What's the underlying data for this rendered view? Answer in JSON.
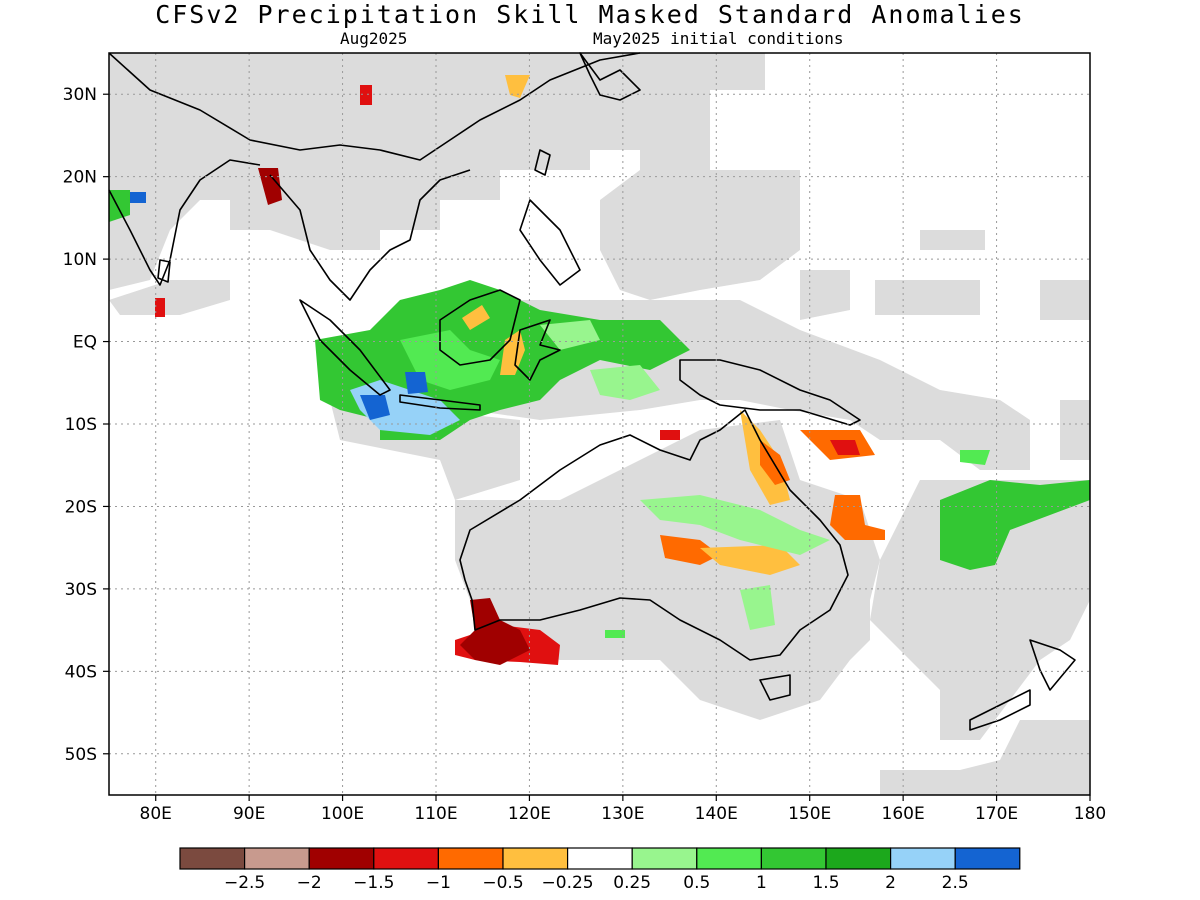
{
  "title": "CFSv2 Precipitation Skill Masked Standard Anomalies",
  "valid_label": "Aug2025",
  "init_label": "May2025 initial conditions",
  "map": {
    "lon_range": [
      75,
      180
    ],
    "lat_range": [
      -55,
      35
    ],
    "x_ticks": [
      "80E",
      "90E",
      "100E",
      "110E",
      "120E",
      "130E",
      "140E",
      "150E",
      "160E",
      "170E",
      "180"
    ],
    "x_tick_values": [
      80,
      90,
      100,
      110,
      120,
      130,
      140,
      150,
      160,
      170,
      180
    ],
    "y_ticks": [
      "30N",
      "20N",
      "10N",
      "EQ",
      "10S",
      "20S",
      "30S",
      "40S",
      "50S"
    ],
    "y_tick_values": [
      30,
      20,
      10,
      0,
      -10,
      -20,
      -30,
      -40,
      -50
    ],
    "grid": "dotted",
    "mask_color": "#dcdcdc"
  },
  "legend": {
    "colors": [
      "#7b4a3f",
      "#c89a8e",
      "#a00000",
      "#e01010",
      "#ff6a00",
      "#ffbf3f",
      "#ffffff",
      "#98f58e",
      "#52ea52",
      "#33c733",
      "#1ca81c",
      "#96d2f8",
      "#1464d2"
    ],
    "labels": [
      "−2.5",
      "−2",
      "−1.5",
      "−1",
      "−0.5",
      "−0.25",
      "0.25",
      "0.5",
      "1",
      "1.5",
      "2",
      "2.5"
    ]
  }
}
